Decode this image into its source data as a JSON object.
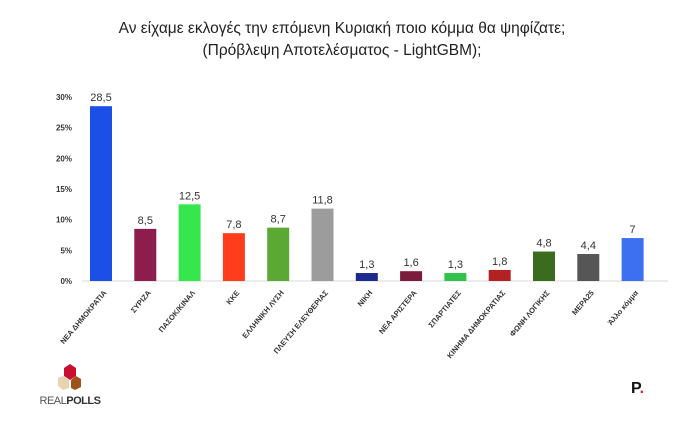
{
  "chart_data": {
    "type": "bar",
    "title": "Αν είχαμε εκλογές την επόμενη Κυριακή ποιο κόμμα θα ψηφίζατε;",
    "subtitle": "(Πρόβλεψη Αποτελέσματος - LightGBM);",
    "categories": [
      "ΝΕΑ ΔΗΜΟΚΡΑΤΙΑ",
      "ΣΥΡΙΖΑ",
      "ΠΑΣΟΚ/ΚΙΝΑΛ",
      "ΚΚΕ",
      "ΕΛΛΗΝΙΚΗ ΛΥΣΗ",
      "ΠΛΕΥΣΗ ΕΛΕΥΘΕΡΙΑΣ",
      "ΝΙΚΗ",
      "ΝΕΑ ΑΡΙΣΤΕΡΑ",
      "ΣΠΑΡΤΙΑΤΕΣ",
      "ΚΙΝΗΜΑ ΔΗΜΟΚΡΑΤΙΑΣ",
      "ΦΩΝΗ ΛΟΓΙΚΗΣ",
      "ΜΕΡΑ25",
      "Άλλο κόμμα"
    ],
    "values": [
      28.5,
      8.5,
      12.5,
      7.8,
      8.7,
      11.8,
      1.3,
      1.6,
      1.3,
      1.8,
      4.8,
      4.4,
      7
    ],
    "labels": [
      "28,5",
      "8,5",
      "12,5",
      "7,8",
      "8,7",
      "11,8",
      "1,3",
      "1,6",
      "1,3",
      "1,8",
      "4,8",
      "4,4",
      "7"
    ],
    "colors": [
      "#1c4fe6",
      "#8c1d4c",
      "#35e64c",
      "#ff3c1c",
      "#5ba834",
      "#9c9c9c",
      "#1b2a8c",
      "#7b1c3c",
      "#2fc34b",
      "#b32222",
      "#3b6b1c",
      "#565656",
      "#3c70f0"
    ],
    "yticks": [
      "0%",
      "5%",
      "10%",
      "15%",
      "20%",
      "25%",
      "30%"
    ],
    "ylim": [
      0,
      30
    ],
    "xlabel": "",
    "ylabel": "",
    "grid": false
  },
  "logos": {
    "realpolls": "REALPOLLS",
    "p": "P"
  }
}
